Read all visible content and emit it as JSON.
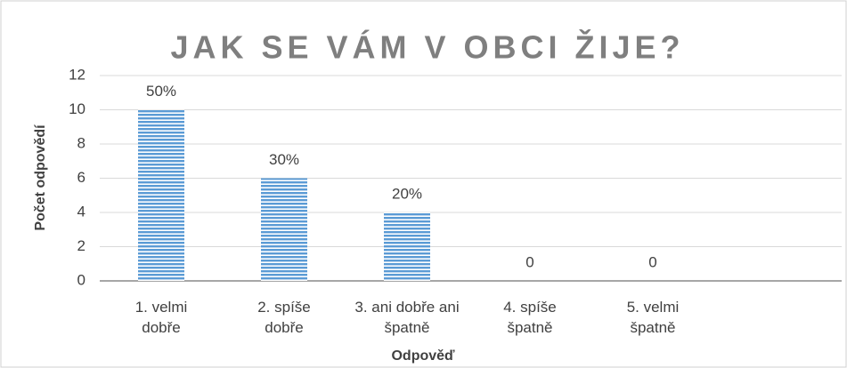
{
  "chart_data": {
    "type": "bar",
    "title": "JAK SE VÁM V OBCI ŽIJE?",
    "x_label": "Odpověď",
    "y_label": "Počet odpovědí",
    "categories": [
      "1.  velmi dobře",
      "2.  spíše dobře",
      "3.  ani dobře ani špatně",
      "4.  spíše špatně",
      "5.  velmi špatně"
    ],
    "values": [
      10,
      6,
      4,
      0,
      0
    ],
    "value_labels": [
      "50%",
      "30%",
      "20%",
      "0",
      "0"
    ],
    "color": "#5b9bd5",
    "ylim": [
      0,
      12
    ],
    "yticks": [
      0,
      2,
      4,
      6,
      8,
      10,
      12
    ],
    "grid": true
  }
}
